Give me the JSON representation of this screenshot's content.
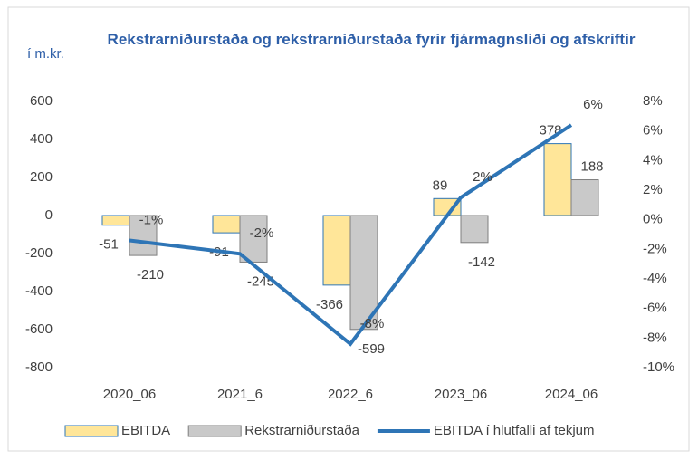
{
  "chart_data": {
    "type": "bar_line",
    "title": "Rekstrarniðurstaða  og rekstrarniðurstaða  fyrir fjármagnsliði og afskriftir",
    "ylabel": "í m.kr.",
    "categories": [
      "2020_06",
      "2021_6",
      "2022_6",
      "2023_06",
      "2024_06"
    ],
    "series": [
      {
        "name": "EBITDA",
        "type": "bar",
        "color": "#ffe699",
        "stroke": "#2e75b6",
        "values": [
          -51,
          -91,
          -366,
          89,
          378
        ]
      },
      {
        "name": "Rekstrarniðurstaða",
        "type": "bar",
        "color": "#c9c9c9",
        "stroke": "#7f7f7f",
        "values": [
          -210,
          -245,
          -599,
          -142,
          188
        ]
      },
      {
        "name": "EBITDA í hlutfalli af tekjum",
        "type": "line",
        "axis": "y2",
        "color": "#2e75b6",
        "values": [
          -1.4,
          -2.3,
          -8.4,
          1.5,
          6.4
        ],
        "value_labels": [
          "-1%",
          "-2%",
          "-8%",
          "2%",
          "6%"
        ]
      }
    ],
    "ylim": [
      -800,
      600
    ],
    "yticks": [
      -800,
      -600,
      -400,
      -200,
      0,
      200,
      400,
      600
    ],
    "y2lim": [
      -10,
      8
    ],
    "y2ticks": [
      {
        "value": -10,
        "label": "-10%"
      },
      {
        "value": -8,
        "label": "-8%"
      },
      {
        "value": -6,
        "label": "-6%"
      },
      {
        "value": -4,
        "label": "-4%"
      },
      {
        "value": -2,
        "label": "-2%"
      },
      {
        "value": 0,
        "label": "0%"
      },
      {
        "value": 2,
        "label": "2%"
      },
      {
        "value": 4,
        "label": "4%"
      },
      {
        "value": 6,
        "label": "6%"
      },
      {
        "value": 8,
        "label": "8%"
      }
    ]
  }
}
